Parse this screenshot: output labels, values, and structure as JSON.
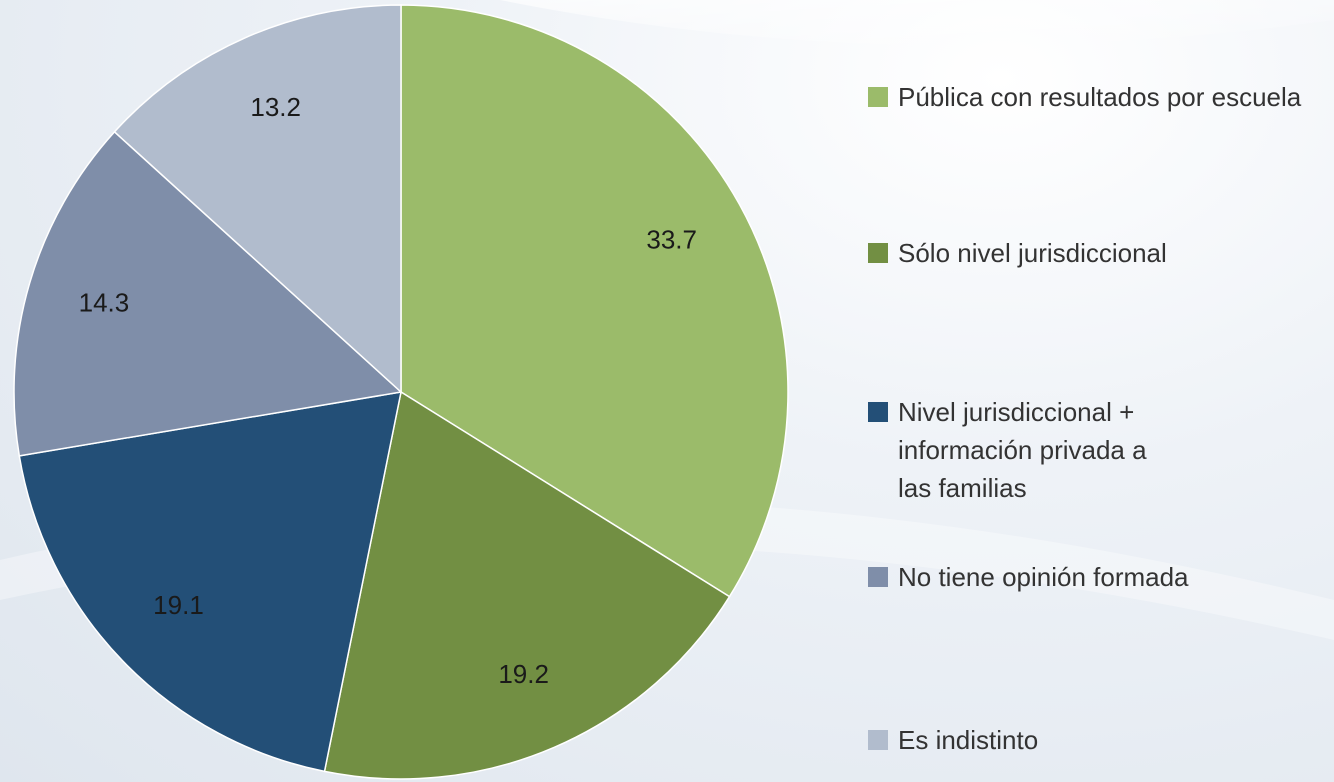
{
  "chart_data": {
    "type": "pie",
    "categories": [
      "Pública con resultados por escuela",
      "Sólo nivel jurisdiccional",
      "Nivel jurisdiccional + información privada a las familias",
      "No tiene opinión formada",
      "Es indistinto"
    ],
    "values": [
      33.7,
      19.2,
      19.1,
      14.3,
      13.2
    ],
    "colors": [
      "#9bbb6a",
      "#728f43",
      "#234f77",
      "#7f8ea9",
      "#b1bccd"
    ],
    "legend": "right"
  }
}
